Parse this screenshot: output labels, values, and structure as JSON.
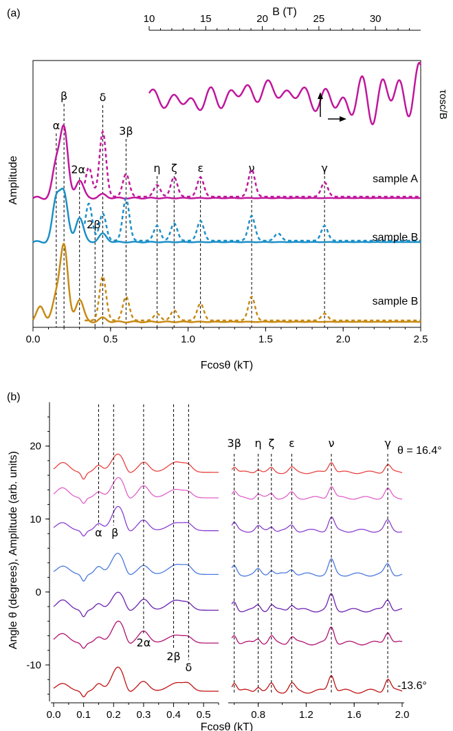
{
  "chart_data": [
    {
      "panel_label": "(a)",
      "type": "line",
      "xlabel": "Fcosθ (kT)",
      "ylabel": "Amplitude",
      "xlim": [
        0.0,
        2.5
      ],
      "x_ticks": [
        "0.0",
        "0.5",
        "1.0",
        "1.5",
        "2.0",
        "2.5"
      ],
      "top_axis": {
        "label": "B (T)",
        "ticks": [
          "10",
          "15",
          "20",
          "25",
          "30"
        ],
        "range": [
          10,
          34
        ]
      },
      "inset_label": "τosc/B",
      "peak_labels": [
        {
          "text": "α",
          "x": 0.15
        },
        {
          "text": "β",
          "x": 0.2
        },
        {
          "text": "2α",
          "x": 0.3
        },
        {
          "text": "δ",
          "x": 0.45
        },
        {
          "text": "2β",
          "x": 0.4
        },
        {
          "text": "3β",
          "x": 0.6
        },
        {
          "text": "η",
          "x": 0.8
        },
        {
          "text": "ζ",
          "x": 0.91
        },
        {
          "text": "ε",
          "x": 1.08
        },
        {
          "text": "ν",
          "x": 1.41
        },
        {
          "text": "γ",
          "x": 1.88
        }
      ],
      "series": [
        {
          "name": "sample A",
          "color": "#c0169c",
          "peaks": [
            [
              0.15,
              0.45
            ],
            [
              0.2,
              0.95
            ],
            [
              0.3,
              0.25
            ],
            [
              0.45,
              0.05
            ]
          ],
          "dashed_peaks": [
            [
              0.36,
              0.45
            ],
            [
              0.45,
              1.0
            ],
            [
              0.6,
              0.35
            ],
            [
              0.8,
              0.18
            ],
            [
              0.91,
              0.3
            ],
            [
              1.08,
              0.3
            ],
            [
              1.41,
              0.42
            ],
            [
              1.88,
              0.22
            ]
          ]
        },
        {
          "name": "sample B",
          "color": "#1a8fc8",
          "peaks": [
            [
              0.15,
              0.75
            ],
            [
              0.2,
              0.85
            ],
            [
              0.3,
              0.45
            ],
            [
              0.45,
              0.15
            ]
          ],
          "dashed_peaks": [
            [
              0.36,
              0.75
            ],
            [
              0.45,
              0.55
            ],
            [
              0.6,
              0.85
            ],
            [
              0.8,
              0.3
            ],
            [
              0.91,
              0.35
            ],
            [
              1.08,
              0.4
            ],
            [
              1.41,
              0.5
            ],
            [
              1.58,
              0.15
            ],
            [
              1.88,
              0.3
            ]
          ]
        },
        {
          "name": "sample B",
          "color": "#c88a14",
          "peaks": [
            [
              0.05,
              0.2
            ],
            [
              0.15,
              0.3
            ],
            [
              0.2,
              1.0
            ],
            [
              0.3,
              0.3
            ],
            [
              0.45,
              0.05
            ]
          ],
          "dashed_peaks": [
            [
              0.45,
              0.65
            ],
            [
              0.6,
              0.35
            ],
            [
              0.8,
              0.1
            ],
            [
              0.91,
              0.15
            ],
            [
              1.08,
              0.25
            ],
            [
              1.41,
              0.35
            ],
            [
              1.88,
              0.1
            ]
          ]
        }
      ]
    },
    {
      "panel_label": "(b)",
      "type": "line",
      "xlabel": "Fcosθ (kT)",
      "ylabel": "Angle θ (degrees), Amplitude (arb. units)",
      "ylim": [
        -15,
        26
      ],
      "y_ticks": [
        "-10",
        "0",
        "10",
        "20"
      ],
      "x_ticks_left": [
        "0.0",
        "0.1",
        "0.2",
        "0.3",
        "0.4",
        "0.5"
      ],
      "x_ticks_right": [
        "0.8",
        "1.2",
        "1.6",
        "2.0"
      ],
      "angle_top": "θ = 16.4°",
      "angle_bottom": "-13.6°",
      "peak_labels_top": [
        {
          "text": "3β",
          "x": 0.6
        },
        {
          "text": "η",
          "x": 0.8
        },
        {
          "text": "ζ",
          "x": 0.91
        },
        {
          "text": "ε",
          "x": 1.08
        },
        {
          "text": "ν",
          "x": 1.41
        },
        {
          "text": "γ",
          "x": 1.88
        }
      ],
      "peak_labels_left": [
        {
          "text": "α",
          "x": 0.15
        },
        {
          "text": "β",
          "x": 0.2
        },
        {
          "text": "2α",
          "x": 0.3
        },
        {
          "text": "2β",
          "x": 0.4
        },
        {
          "text": "δ",
          "x": 0.45
        }
      ],
      "angles": [
        16.4,
        12.9,
        8.4,
        2.4,
        -2.5,
        -7.0,
        -13.6
      ],
      "colors": [
        "#e8413e",
        "#e060c8",
        "#8a3fd0",
        "#4a78e0",
        "#6a1fb0",
        "#b01070",
        "#c01010"
      ]
    }
  ]
}
